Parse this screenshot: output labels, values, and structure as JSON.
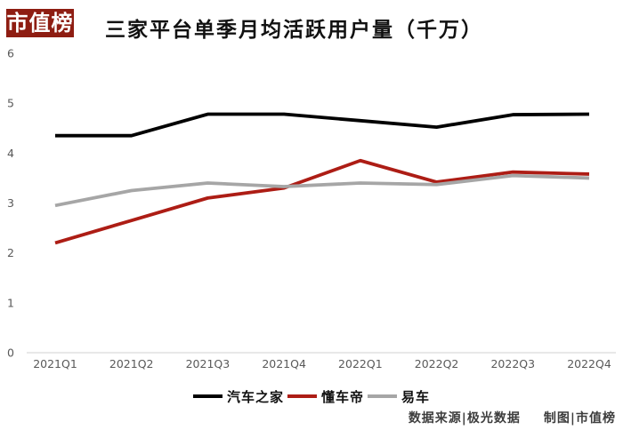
{
  "logo": {
    "text": "市值榜",
    "bg_color": "#8e1d12",
    "text_color": "#ffffff"
  },
  "title": "三家平台单季月均活跃用户量（千万）",
  "chart_data": {
    "type": "line",
    "categories": [
      "2021Q1",
      "2021Q2",
      "2021Q3",
      "2021Q4",
      "2022Q1",
      "2022Q2",
      "2022Q3",
      "2022Q4"
    ],
    "series": [
      {
        "name": "汽车之家",
        "color": "#000000",
        "values": [
          4.35,
          4.35,
          4.78,
          4.78,
          4.65,
          4.52,
          4.77,
          4.78
        ]
      },
      {
        "name": "懂车帝",
        "color": "#ad1d15",
        "values": [
          2.2,
          2.65,
          3.1,
          3.3,
          3.85,
          3.42,
          3.62,
          3.58
        ]
      },
      {
        "name": "易车",
        "color": "#a6a6a6",
        "values": [
          2.95,
          3.25,
          3.4,
          3.33,
          3.4,
          3.37,
          3.55,
          3.5
        ]
      }
    ],
    "title": "三家平台单季月均活跃用户量（千万）",
    "xlabel": "",
    "ylabel": "",
    "ylim": [
      0,
      6
    ],
    "yticks": [
      0,
      1,
      2,
      3,
      4,
      5,
      6
    ],
    "grid": "x-axis baseline only",
    "legend_position": "bottom",
    "axis_label_color": "#595959",
    "baseline_color": "#d9d9d9"
  },
  "footer": {
    "source": "数据来源|极光数据",
    "credit": "制图|市值榜"
  }
}
